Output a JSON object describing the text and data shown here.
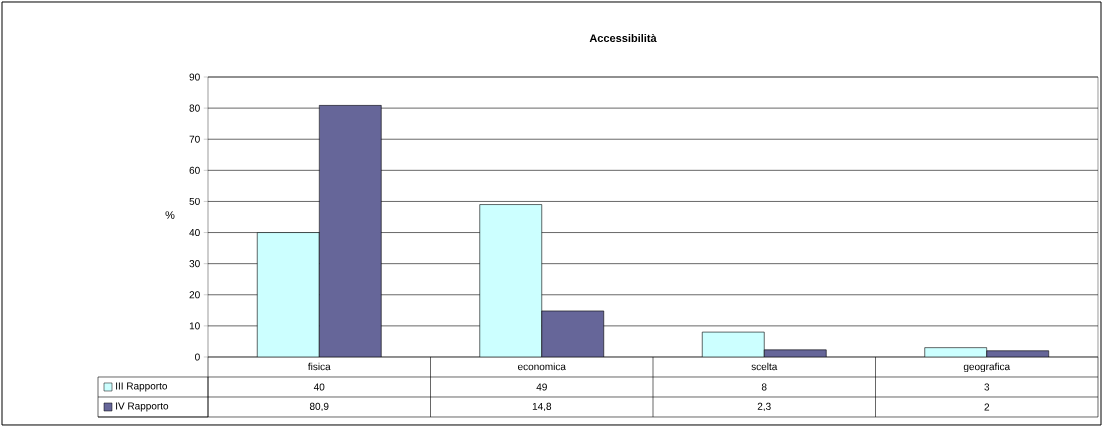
{
  "chart_data": {
    "type": "bar",
    "title": "Accessibilità",
    "ylabel": "%",
    "categories": [
      "fisica",
      "economica",
      "scelta",
      "geografica"
    ],
    "series": [
      {
        "name": "III Rapporto",
        "color": "#ccffff",
        "values": [
          40,
          49,
          8,
          3
        ],
        "value_labels": [
          "40",
          "49",
          "8",
          "3"
        ]
      },
      {
        "name": "IV Rapporto",
        "color": "#666699",
        "values": [
          80.9,
          14.8,
          2.3,
          2
        ],
        "value_labels": [
          "80,9",
          "14,8",
          "2,3",
          "2"
        ]
      }
    ],
    "ylim": [
      0,
      90
    ],
    "yticks": [
      0,
      10,
      20,
      30,
      40,
      50,
      60,
      70,
      80,
      90
    ],
    "grid": "y",
    "legend": "bottom"
  }
}
